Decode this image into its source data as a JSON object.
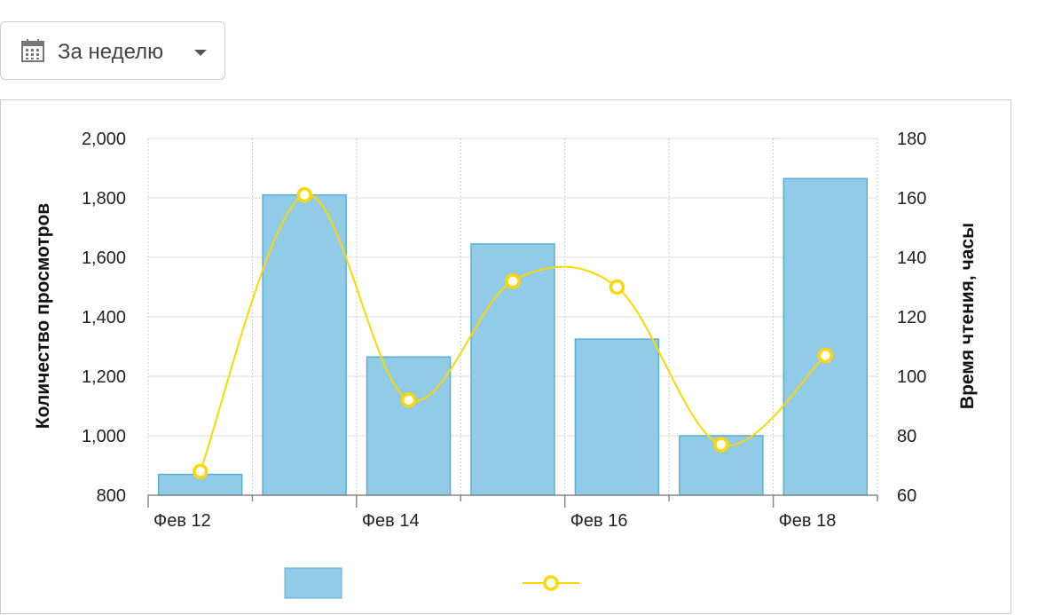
{
  "filter": {
    "label": "За неделю",
    "icon": "calendar-icon",
    "dropdown_icon": "caret-down-icon"
  },
  "chart_data": {
    "type": "bar",
    "x_tick_labels": [
      "Фев 12",
      "Фев 14",
      "Фев 16",
      "Фев 18"
    ],
    "series": [
      {
        "type": "bar",
        "axis": "left",
        "color": "#92cbe7",
        "values": [
          870,
          1810,
          1265,
          1645,
          1325,
          1000,
          1865
        ]
      },
      {
        "type": "line",
        "axis": "right",
        "color": "#ffd700",
        "values": [
          68,
          161,
          92,
          132,
          130,
          77,
          107
        ]
      }
    ],
    "y_left": {
      "label": "Количество просмотров",
      "range": [
        800,
        2000
      ],
      "ticks": [
        "2,000",
        "1,800",
        "1,600",
        "1,400",
        "1,200",
        "1,000",
        "800"
      ]
    },
    "y_right": {
      "label": "Время чтения, часы",
      "range": [
        60,
        180
      ],
      "ticks": [
        "180",
        "160",
        "140",
        "120",
        "100",
        "80",
        "60"
      ]
    },
    "grid": true,
    "legend": "bottom"
  }
}
